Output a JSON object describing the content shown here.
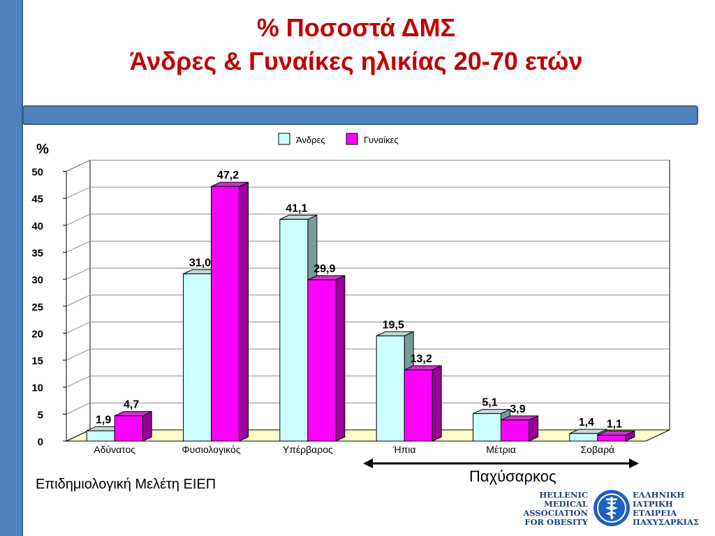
{
  "slide": {
    "title_line1": "% Ποσοστά ΔΜΣ",
    "title_line2": "Άνδρες & Γυναίκες ηλικίας 20-70 ετών",
    "footnote": "Επιδημιολογική Μελέτη ΕΙΕΠ",
    "obese_label": "Παχύσαρκος"
  },
  "logo": {
    "english_lines": [
      "HELLENIC",
      "MEDICAL",
      "ASSOCIATION",
      "FOR OBESITY"
    ],
    "greek_lines": [
      "ΕΛΛΗΝΙΚΗ",
      "ΙΑΤΡΙΚΗ",
      "ΕΤΑΙΡΕΙΑ",
      "ΠΑΧΥΣΑΡΚΙΑΣ"
    ]
  },
  "chart_data": {
    "type": "bar",
    "ylabel": "%",
    "ylim": [
      0,
      50
    ],
    "yticks": [
      0,
      5,
      10,
      15,
      20,
      25,
      30,
      35,
      40,
      45,
      50
    ],
    "grid": true,
    "legend_position": "top",
    "categories": [
      "Αδύνατος",
      "Φυσιολογικός",
      "Υπέρβαρος",
      "Ήπια",
      "Μέτρια",
      "Σοβαρά"
    ],
    "series": [
      {
        "name": "Άνδρες",
        "color": "#ccffff",
        "values": [
          1.9,
          31.0,
          41.1,
          19.5,
          5.1,
          1.4
        ],
        "labels": [
          "1,9",
          "31,0",
          "41,1",
          "19,5",
          "5,1",
          "1,4"
        ]
      },
      {
        "name": "Γυναίκες",
        "color": "#ff00ff",
        "values": [
          4.7,
          47.2,
          29.9,
          13.2,
          3.9,
          1.1
        ],
        "labels": [
          "4,7",
          "47,2",
          "29,9",
          "13,2",
          "3,9",
          "1,1"
        ]
      }
    ],
    "bracket": {
      "label": "Παχύσαρκος",
      "from_category": "Ήπια",
      "to_category": "Σοβαρά"
    }
  }
}
